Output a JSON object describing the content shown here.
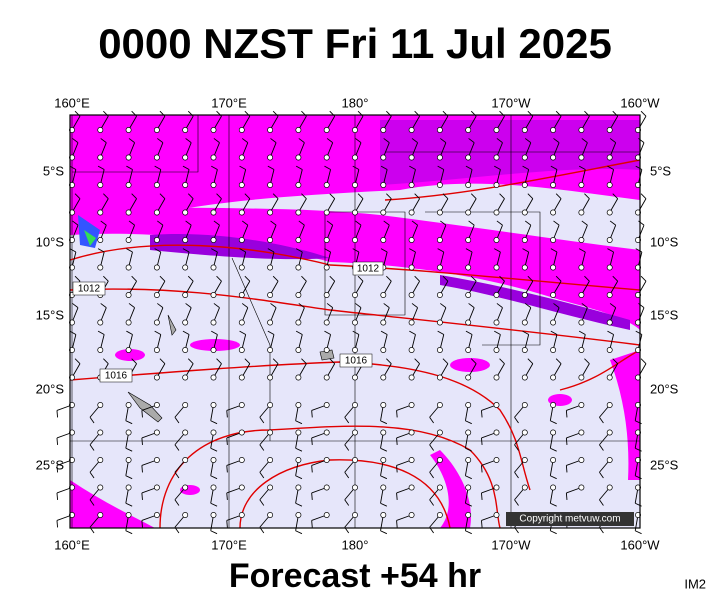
{
  "title": "0000 NZST Fri 11 Jul 2025",
  "subtitle": "Forecast +54 hr",
  "corner_label": "IM2",
  "lon_labels": [
    "160°E",
    "170°E",
    "180°",
    "170°W",
    "160°W"
  ],
  "lat_labels": [
    "5°S",
    "10°S",
    "15°S",
    "20°S",
    "25°S"
  ],
  "isobar_labels": [
    "1012",
    "1012",
    "1016",
    "1016"
  ],
  "copyright": "Copyright metvuw.com"
}
